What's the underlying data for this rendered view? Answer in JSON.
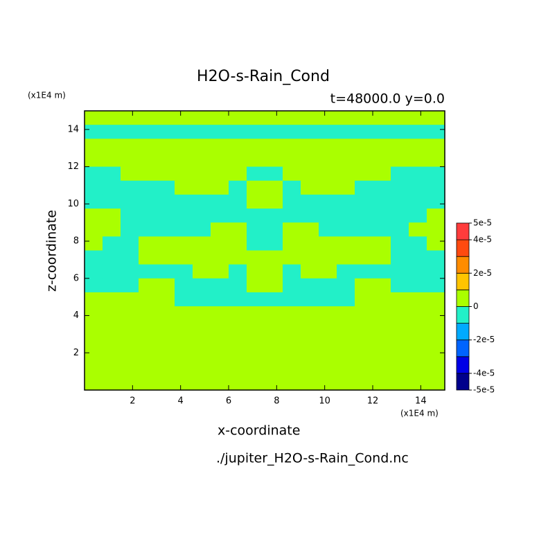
{
  "chart_data": {
    "type": "contour",
    "title": "H2O-s-Rain_Cond",
    "subtitle": "t=48000.0 y=0.0",
    "x_label": "x-coordinate",
    "y_label": "z-coordinate",
    "x_unit": "(x1E4 m)",
    "y_unit": "(x1E4 m)",
    "footer": "./jupiter_H2O-s-Rain_Cond.nc",
    "xlim": [
      0,
      15
    ],
    "ylim": [
      0,
      15
    ],
    "xticks": [
      2,
      4,
      6,
      8,
      10,
      12,
      14
    ],
    "yticks": [
      2,
      4,
      6,
      8,
      10,
      12,
      14
    ],
    "z": [
      [
        0,
        0,
        0,
        0,
        0,
        0,
        0,
        0,
        0,
        0,
        0,
        0,
        0,
        0,
        0,
        0,
        0,
        0,
        0,
        0
      ],
      [
        -5e-06,
        -5e-06,
        -5e-06,
        -5e-06,
        -5e-06,
        -5e-06,
        -5e-06,
        -5e-06,
        -5e-06,
        -5e-06,
        -5e-06,
        -5e-06,
        -5e-06,
        -5e-06,
        -5e-06,
        -5e-06,
        -5e-06,
        -5e-06,
        -5e-06,
        -5e-06
      ],
      [
        0,
        0,
        0,
        0,
        0,
        0,
        0,
        0,
        0,
        0,
        0,
        0,
        0,
        0,
        0,
        0,
        0,
        0,
        0,
        0
      ],
      [
        0,
        0,
        0,
        0,
        0,
        0,
        0,
        0,
        0,
        0,
        0,
        0,
        0,
        0,
        0,
        0,
        0,
        0,
        0,
        0
      ],
      [
        -5e-06,
        -5e-06,
        0,
        0,
        0,
        0,
        0,
        0,
        0,
        -5e-06,
        -5e-06,
        0,
        0,
        0,
        0,
        0,
        0,
        -5e-06,
        -5e-06,
        -5e-06
      ],
      [
        -5e-06,
        -5e-06,
        -5e-06,
        -5e-06,
        -5e-06,
        0,
        0,
        0,
        -5e-06,
        0,
        0,
        -5e-06,
        0,
        0,
        0,
        -5e-06,
        -5e-06,
        -5e-06,
        -5e-06,
        -5e-06
      ],
      [
        -5e-06,
        -5e-06,
        -5e-06,
        -5e-06,
        -5e-06,
        -5e-06,
        -5e-06,
        -5e-06,
        -5e-06,
        0,
        0,
        -5e-06,
        -5e-06,
        -5e-06,
        -5e-06,
        -5e-06,
        -5e-06,
        -5e-06,
        -5e-06,
        -5e-06
      ],
      [
        0,
        0,
        -5e-06,
        -5e-06,
        -5e-06,
        -5e-06,
        -5e-06,
        -5e-06,
        -5e-06,
        -5e-06,
        -5e-06,
        -5e-06,
        -5e-06,
        -5e-06,
        -5e-06,
        -5e-06,
        -5e-06,
        -5e-06,
        -5e-06,
        0
      ],
      [
        0,
        0,
        -5e-06,
        -5e-06,
        -5e-06,
        -5e-06,
        -5e-06,
        0,
        0,
        -5e-06,
        -5e-06,
        0,
        0,
        -5e-06,
        -5e-06,
        -5e-06,
        -5e-06,
        -5e-06,
        0,
        0
      ],
      [
        0,
        -5e-06,
        -5e-06,
        0,
        0,
        0,
        0,
        0,
        0,
        -5e-06,
        -5e-06,
        0,
        0,
        0,
        0,
        0,
        0,
        -5e-06,
        -5e-06,
        0
      ],
      [
        -5e-06,
        -5e-06,
        -5e-06,
        0,
        0,
        0,
        0,
        0,
        0,
        0,
        0,
        0,
        0,
        0,
        0,
        0,
        0,
        -5e-06,
        -5e-06,
        -5e-06
      ],
      [
        -5e-06,
        -5e-06,
        -5e-06,
        -5e-06,
        -5e-06,
        -5e-06,
        0,
        0,
        -5e-06,
        0,
        0,
        -5e-06,
        0,
        0,
        -5e-06,
        -5e-06,
        -5e-06,
        -5e-06,
        -5e-06,
        -5e-06
      ],
      [
        -5e-06,
        -5e-06,
        -5e-06,
        0,
        0,
        -5e-06,
        -5e-06,
        -5e-06,
        -5e-06,
        0,
        0,
        -5e-06,
        -5e-06,
        -5e-06,
        -5e-06,
        0,
        0,
        -5e-06,
        -5e-06,
        -5e-06
      ],
      [
        0,
        0,
        0,
        0,
        0,
        -5e-06,
        -5e-06,
        -5e-06,
        -5e-06,
        -5e-06,
        -5e-06,
        -5e-06,
        -5e-06,
        -5e-06,
        -5e-06,
        0,
        0,
        0,
        0,
        0
      ],
      [
        0,
        0,
        0,
        0,
        0,
        0,
        0,
        0,
        0,
        0,
        0,
        0,
        0,
        0,
        0,
        0,
        0,
        0,
        0,
        0
      ],
      [
        0,
        0,
        0,
        0,
        0,
        0,
        0,
        0,
        0,
        0,
        0,
        0,
        0,
        0,
        0,
        0,
        0,
        0,
        0,
        0
      ],
      [
        0,
        0,
        0,
        0,
        0,
        0,
        0,
        0,
        0,
        0,
        0,
        0,
        0,
        0,
        0,
        0,
        0,
        0,
        0,
        0
      ],
      [
        0,
        0,
        0,
        0,
        0,
        0,
        0,
        0,
        0,
        0,
        0,
        0,
        0,
        0,
        0,
        0,
        0,
        0,
        0,
        0
      ],
      [
        0,
        0,
        0,
        0,
        0,
        0,
        0,
        0,
        0,
        0,
        0,
        0,
        0,
        0,
        0,
        0,
        0,
        0,
        0,
        0
      ],
      [
        0,
        0,
        0,
        0,
        0,
        0,
        0,
        0,
        0,
        0,
        0,
        0,
        0,
        0,
        0,
        0,
        0,
        0,
        0,
        0
      ]
    ],
    "levels": [
      -5e-05,
      -4e-05,
      -3e-05,
      -2e-05,
      -1e-05,
      0,
      1e-05,
      2e-05,
      3e-05,
      4e-05,
      5e-05
    ],
    "colors": [
      "#00008c",
      "#0000e6",
      "#0064ff",
      "#00aaff",
      "#22f0c8",
      "#aaff00",
      "#ffc400",
      "#ff8c00",
      "#ff4a10",
      "#ff3c3c"
    ],
    "colorbar_ticks": [
      {
        "value": 5e-05,
        "label": "5e-5"
      },
      {
        "value": 4e-05,
        "label": "4e-5"
      },
      {
        "value": 2e-05,
        "label": "2e-5"
      },
      0,
      {
        "value": -2e-05,
        "label": "-2e-5"
      },
      {
        "value": -4e-05,
        "label": "-4e-5"
      },
      {
        "value": -5e-05,
        "label": "-5e-5"
      }
    ]
  }
}
